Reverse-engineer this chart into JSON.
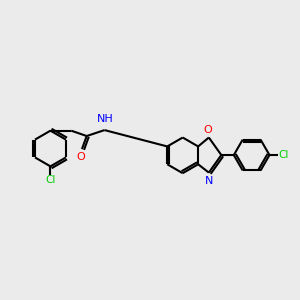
{
  "background_color": "#ebebeb",
  "bond_color": "#000000",
  "atom_colors": {
    "Cl": "#00cc00",
    "O": "#ff0000",
    "N": "#0000ff",
    "H": "#008888",
    "C": "#000000"
  },
  "figsize": [
    3.0,
    3.0
  ],
  "dpi": 100,
  "lw": 1.5,
  "db_off": 0.075,
  "r6": 0.6
}
